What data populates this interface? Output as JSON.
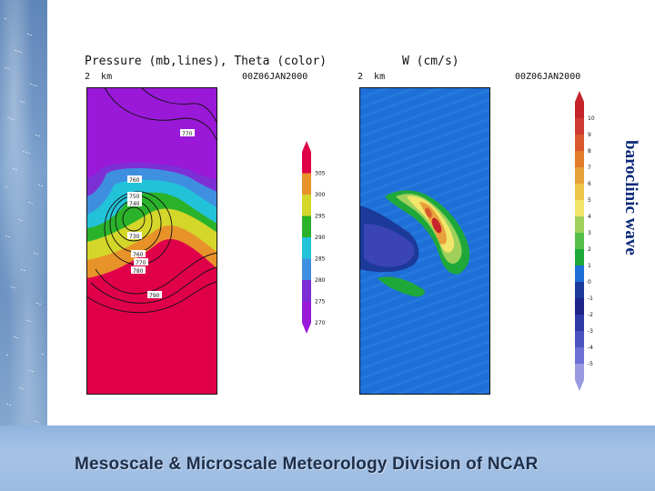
{
  "left_panel": {
    "title": "Pressure (mb,lines), Theta (color)",
    "height_label": "2  km",
    "time_label": "00Z06JAN2000",
    "contour_labels": [
      "770",
      "760",
      "750",
      "740",
      "730",
      "760",
      "770",
      "780",
      "790"
    ],
    "colorbar_labels": [
      "305",
      "300",
      "295",
      "290",
      "285",
      "280",
      "275",
      "270"
    ],
    "colorbar_colors": [
      "#e0004a",
      "#e8932a",
      "#d4d62a",
      "#2ab22a",
      "#22c2d8",
      "#3f8fe0",
      "#7d2fd6",
      "#9a19d8"
    ]
  },
  "right_panel": {
    "title": "W (cm/s)",
    "height_label": "2  km",
    "time_label": "00Z06JAN2000",
    "colorbar_labels": [
      "10",
      "9",
      "8",
      "7",
      "6",
      "5",
      "4",
      "3",
      "2",
      "1",
      "0",
      "-1",
      "-2",
      "-3",
      "-4",
      "-5"
    ],
    "colorbar_colors": [
      "#c4242a",
      "#cf3a33",
      "#d9592d",
      "#e27b2a",
      "#e8a03a",
      "#eec64a",
      "#f1e56a",
      "#9ed05a",
      "#56bf4a",
      "#1fa83a",
      "#1e6fd8",
      "#1b3a9a",
      "#1c2488",
      "#2e3aa8",
      "#4a53c0",
      "#6c6fd4",
      "#9a9ae0"
    ]
  },
  "side_label": "baroclinic wave",
  "footer": "Mesoscale & Microscale Meteorology Division of NCAR"
}
